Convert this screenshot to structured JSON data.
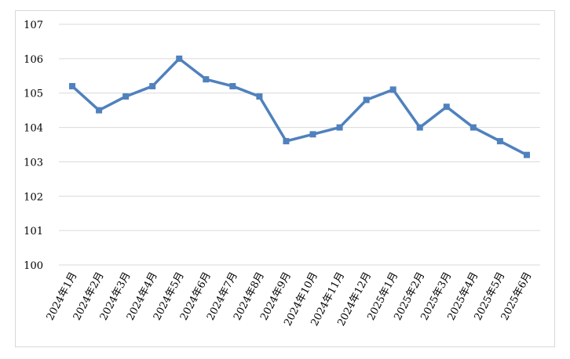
{
  "chart_data": {
    "type": "line",
    "categories": [
      "2024年1月",
      "2024年2月",
      "2024年3月",
      "2024年4月",
      "2024年5月",
      "2024年6月",
      "2024年7月",
      "2024年8月",
      "2024年9月",
      "2024年10月",
      "2024年11月",
      "2024年12月",
      "2025年1月",
      "2025年2月",
      "2025年3月",
      "2025年4月",
      "2025年5月",
      "2025年6月"
    ],
    "values": [
      105.2,
      104.5,
      104.9,
      105.2,
      106.0,
      105.4,
      105.2,
      104.9,
      103.6,
      103.8,
      104.0,
      104.8,
      105.1,
      104.0,
      104.6,
      104.0,
      103.6,
      103.2
    ],
    "color": "#4f81bd",
    "ylim": [
      100,
      107
    ],
    "yticks": [
      100,
      101,
      102,
      103,
      104,
      105,
      106,
      107
    ],
    "grid": true
  }
}
